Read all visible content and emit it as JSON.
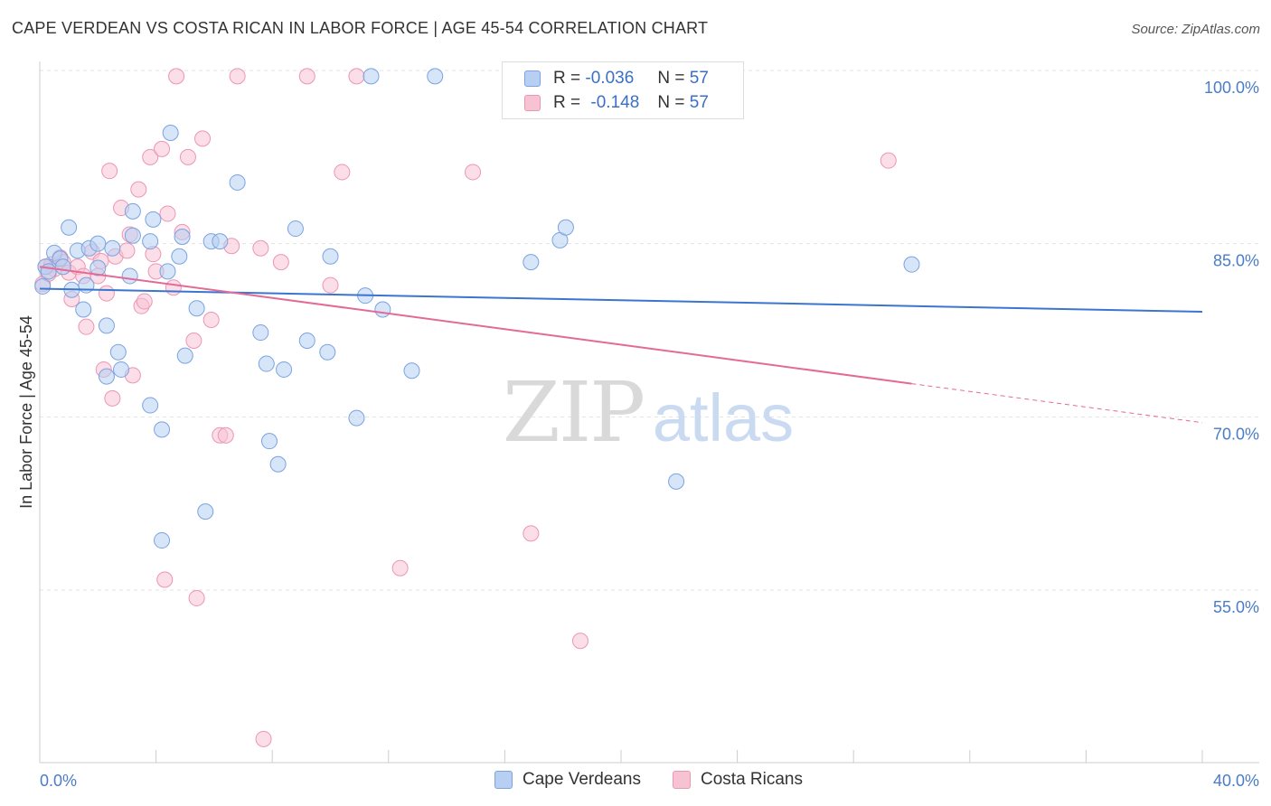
{
  "title": "CAPE VERDEAN VS COSTA RICAN IN LABOR FORCE | AGE 45-54 CORRELATION CHART",
  "source": "Source: ZipAtlas.com",
  "watermark": {
    "zip": "ZIP",
    "atlas": "atlas"
  },
  "legend": {
    "rows": [
      {
        "r_label": "R =",
        "r_value": "-0.036",
        "n_label": "N =",
        "n_value": "57"
      },
      {
        "r_label": "R =",
        "r_value": "-0.148",
        "n_label": "N =",
        "n_value": "57"
      }
    ]
  },
  "colors": {
    "blue_fill": "#b7cff2",
    "blue_stroke": "#7aa3e0",
    "blue_line": "#3a76cf",
    "pink_fill": "#f7c3d3",
    "pink_stroke": "#ec96b3",
    "pink_line": "#e46a96",
    "grid": "#e3e3e3",
    "tick_text": "#4a7cc7"
  },
  "chart_data": {
    "type": "scatter",
    "xlabel": "",
    "ylabel": "In Labor Force | Age 45-54",
    "xlim": [
      0,
      40
    ],
    "ylim": [
      40,
      100
    ],
    "x_tick_labels": [
      "0.0%",
      "40.0%"
    ],
    "y_ticks": [
      55,
      70,
      85,
      100
    ],
    "y_tick_labels": [
      "55.0%",
      "70.0%",
      "85.0%",
      "100.0%"
    ],
    "grid": true,
    "legend_position": "top-center",
    "series": [
      {
        "name": "Cape Verdeans",
        "color": "#b7cff2",
        "trend": {
          "x": [
            0,
            40
          ],
          "y": [
            81.1,
            79.1
          ]
        },
        "points": [
          [
            0.2,
            83.0
          ],
          [
            0.3,
            82.6
          ],
          [
            0.5,
            84.2
          ],
          [
            0.7,
            83.7
          ],
          [
            0.8,
            83.0
          ],
          [
            1.0,
            86.4
          ],
          [
            1.1,
            81.0
          ],
          [
            1.3,
            84.4
          ],
          [
            1.5,
            79.3
          ],
          [
            1.6,
            81.4
          ],
          [
            1.7,
            84.6
          ],
          [
            2.0,
            82.9
          ],
          [
            2.0,
            85.0
          ],
          [
            2.3,
            77.9
          ],
          [
            2.5,
            84.6
          ],
          [
            2.3,
            73.5
          ],
          [
            2.7,
            75.6
          ],
          [
            2.8,
            74.1
          ],
          [
            3.1,
            82.2
          ],
          [
            3.2,
            87.8
          ],
          [
            3.2,
            85.7
          ],
          [
            3.8,
            85.2
          ],
          [
            3.8,
            71.0
          ],
          [
            3.9,
            87.1
          ],
          [
            4.2,
            68.9
          ],
          [
            4.2,
            59.3
          ],
          [
            4.4,
            82.6
          ],
          [
            4.5,
            94.6
          ],
          [
            4.8,
            83.9
          ],
          [
            4.9,
            85.6
          ],
          [
            5.0,
            75.3
          ],
          [
            5.4,
            79.4
          ],
          [
            5.7,
            61.8
          ],
          [
            5.9,
            85.2
          ],
          [
            6.2,
            85.2
          ],
          [
            6.8,
            90.3
          ],
          [
            7.6,
            77.3
          ],
          [
            7.8,
            74.6
          ],
          [
            7.9,
            67.9
          ],
          [
            8.2,
            65.9
          ],
          [
            8.4,
            74.1
          ],
          [
            8.8,
            86.3
          ],
          [
            9.2,
            76.6
          ],
          [
            9.9,
            75.6
          ],
          [
            10.0,
            83.9
          ],
          [
            10.9,
            69.9
          ],
          [
            11.2,
            80.5
          ],
          [
            11.4,
            99.5
          ],
          [
            11.8,
            79.3
          ],
          [
            12.8,
            74.0
          ],
          [
            13.6,
            99.5
          ],
          [
            16.9,
            83.4
          ],
          [
            17.9,
            85.3
          ],
          [
            18.1,
            86.4
          ],
          [
            21.9,
            64.4
          ],
          [
            30.0,
            83.2
          ],
          [
            0.1,
            81.3
          ]
        ]
      },
      {
        "name": "Costa Ricans",
        "color": "#f7c3d3",
        "trend": {
          "x": [
            0,
            40
          ],
          "y": [
            83.0,
            69.5
          ]
        },
        "points": [
          [
            0.1,
            81.5
          ],
          [
            0.2,
            83.0
          ],
          [
            0.4,
            83.2
          ],
          [
            0.5,
            82.8
          ],
          [
            0.7,
            83.8
          ],
          [
            0.8,
            83.4
          ],
          [
            1.0,
            82.5
          ],
          [
            1.1,
            80.2
          ],
          [
            1.3,
            83.0
          ],
          [
            1.5,
            82.2
          ],
          [
            1.6,
            77.8
          ],
          [
            1.8,
            84.3
          ],
          [
            2.0,
            82.2
          ],
          [
            2.1,
            83.5
          ],
          [
            2.2,
            74.1
          ],
          [
            2.3,
            80.7
          ],
          [
            2.4,
            91.3
          ],
          [
            2.5,
            71.6
          ],
          [
            2.6,
            83.9
          ],
          [
            2.8,
            88.1
          ],
          [
            3.0,
            84.4
          ],
          [
            3.1,
            85.8
          ],
          [
            3.2,
            73.6
          ],
          [
            3.4,
            89.7
          ],
          [
            3.5,
            79.6
          ],
          [
            3.6,
            80.0
          ],
          [
            3.8,
            92.5
          ],
          [
            3.9,
            84.1
          ],
          [
            4.0,
            82.6
          ],
          [
            4.2,
            93.2
          ],
          [
            4.3,
            55.9
          ],
          [
            4.4,
            87.6
          ],
          [
            4.6,
            81.2
          ],
          [
            4.7,
            99.5
          ],
          [
            4.9,
            86.0
          ],
          [
            5.1,
            92.5
          ],
          [
            5.3,
            76.6
          ],
          [
            5.4,
            54.3
          ],
          [
            5.6,
            94.1
          ],
          [
            5.9,
            78.4
          ],
          [
            6.2,
            68.4
          ],
          [
            6.4,
            68.4
          ],
          [
            6.6,
            84.8
          ],
          [
            6.8,
            99.5
          ],
          [
            7.6,
            84.6
          ],
          [
            7.7,
            42.1
          ],
          [
            8.3,
            83.4
          ],
          [
            9.2,
            99.5
          ],
          [
            10.0,
            81.4
          ],
          [
            10.4,
            91.2
          ],
          [
            10.9,
            99.5
          ],
          [
            12.4,
            56.9
          ],
          [
            14.9,
            91.2
          ],
          [
            16.9,
            59.9
          ],
          [
            18.6,
            50.6
          ],
          [
            29.2,
            92.2
          ],
          [
            0.3,
            82.4
          ]
        ]
      }
    ]
  }
}
